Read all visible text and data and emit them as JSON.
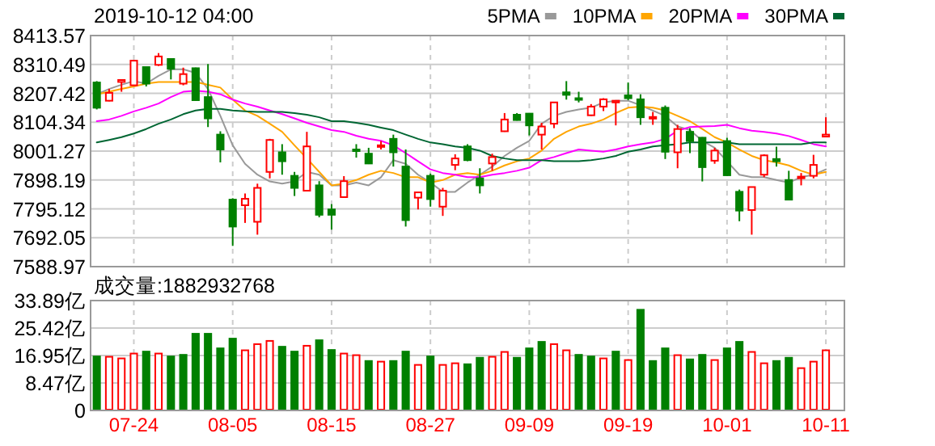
{
  "chart_data": [
    {
      "type": "candlestick",
      "title": "2019-10-12 04:00",
      "categories": [
        null,
        null,
        null,
        null,
        null,
        null,
        null,
        null,
        null,
        null,
        null,
        null,
        null,
        null,
        null,
        null,
        null,
        null,
        null,
        null,
        null,
        null,
        null,
        null,
        null,
        null,
        null,
        null,
        null,
        null,
        null,
        null,
        null,
        null,
        null,
        null,
        null,
        null,
        null,
        null,
        null,
        null,
        null,
        null,
        null,
        null,
        null,
        null,
        null,
        null,
        null,
        null,
        null,
        null,
        null,
        null,
        null,
        null,
        null,
        null
      ],
      "ohlc": [
        [
          8246,
          8251,
          8150,
          8156
        ],
        [
          8181,
          8223,
          8179,
          8209
        ],
        [
          8248,
          8255,
          8213,
          8255
        ],
        [
          8236,
          8324,
          8236,
          8324
        ],
        [
          8301,
          8301,
          8232,
          8242
        ],
        [
          8309,
          8351,
          8305,
          8339
        ],
        [
          8330,
          8332,
          8257,
          8295
        ],
        [
          8242,
          8299,
          8236,
          8276
        ],
        [
          8297,
          8299,
          8181,
          8183
        ],
        [
          8194,
          8312,
          8087,
          8118
        ],
        [
          8060,
          8072,
          7961,
          8007
        ],
        [
          7828,
          7833,
          7663,
          7732
        ],
        [
          7808,
          7850,
          7745,
          7831
        ],
        [
          7749,
          7885,
          7703,
          7870
        ],
        [
          7927,
          8045,
          7904,
          8041
        ],
        [
          7997,
          8026,
          7917,
          7965
        ],
        [
          7913,
          7927,
          7841,
          7870
        ],
        [
          7860,
          8070,
          7858,
          8018
        ],
        [
          7879,
          7894,
          7765,
          7774
        ],
        [
          7793,
          7812,
          7721,
          7774
        ],
        [
          7837,
          7912,
          7835,
          7894
        ],
        [
          8007,
          8026,
          7978,
          8003
        ],
        [
          7992,
          8013,
          7955,
          7957
        ],
        [
          8018,
          8037,
          8007,
          8022
        ],
        [
          8045,
          8060,
          7946,
          7997
        ],
        [
          7946,
          8007,
          7732,
          7755
        ],
        [
          7835,
          7854,
          7793,
          7854
        ],
        [
          7913,
          7921,
          7803,
          7830
        ],
        [
          7803,
          7870,
          7770,
          7860
        ],
        [
          7952,
          7990,
          7933,
          7975
        ],
        [
          8018,
          8026,
          7965,
          7969
        ],
        [
          7904,
          7940,
          7850,
          7879
        ],
        [
          7957,
          7992,
          7931,
          7980
        ],
        [
          8072,
          8137,
          8070,
          8114
        ],
        [
          8131,
          8137,
          8110,
          8112
        ],
        [
          8135,
          8137,
          8057,
          8093
        ],
        [
          8060,
          8102,
          8007,
          8089
        ],
        [
          8099,
          8175,
          8083,
          8175
        ],
        [
          8211,
          8251,
          8185,
          8202
        ],
        [
          8190,
          8213,
          8175,
          8185
        ],
        [
          8129,
          8169,
          8127,
          8160
        ],
        [
          8160,
          8190,
          8144,
          8186
        ],
        [
          8175,
          8183,
          8093,
          8181
        ],
        [
          8200,
          8246,
          8183,
          8190
        ],
        [
          8186,
          8204,
          8095,
          8122
        ],
        [
          8120,
          8141,
          8095,
          8123
        ],
        [
          8156,
          8164,
          7973,
          7999
        ],
        [
          7997,
          8095,
          7940,
          8080
        ],
        [
          8070,
          8083,
          7994,
          8037
        ],
        [
          8049,
          8051,
          7893,
          7944
        ],
        [
          7967,
          8013,
          7956,
          8003
        ],
        [
          8037,
          8049,
          7912,
          7915
        ],
        [
          7856,
          7864,
          7751,
          7789
        ],
        [
          7791,
          7873,
          7703,
          7873
        ],
        [
          7917,
          7990,
          7908,
          7986
        ],
        [
          7973,
          8017,
          7946,
          7965
        ],
        [
          7898,
          7931,
          7828,
          7828
        ],
        [
          7906,
          7923,
          7879,
          7910
        ],
        [
          7913,
          7988,
          7904,
          7952
        ],
        [
          8053,
          8122,
          8053,
          8060
        ]
      ],
      "series": [
        {
          "name": "5PMA",
          "type": "line",
          "color": "#999999",
          "values": [
            8204,
            8223,
            8238,
            8251,
            8242,
            8270,
            8293,
            8293,
            8280,
            8223,
            8127,
            8022,
            7956,
            7917,
            7893,
            7885,
            7893,
            7927,
            7917,
            7879,
            7879,
            7889,
            7879,
            7908,
            7969,
            7956,
            7917,
            7889,
            7856,
            7856,
            7889,
            7917,
            7946,
            7984,
            8013,
            8038,
            8099,
            8127,
            8141,
            8150,
            8156,
            8175,
            8181,
            8181,
            8165,
            8146,
            8127,
            8089,
            8076,
            8038,
            8013,
            7965,
            7917,
            7908,
            7908,
            7898,
            7889,
            7908,
            7917,
            7936
          ]
        },
        {
          "name": "10PMA",
          "type": "line",
          "color": "#ffa500",
          "values": [
            8204,
            8213,
            8223,
            8232,
            8242,
            8248,
            8248,
            8248,
            8248,
            8238,
            8228,
            8185,
            8146,
            8127,
            8099,
            8070,
            8022,
            7975,
            7927,
            7879,
            7885,
            7898,
            7917,
            7931,
            7923,
            7908,
            7908,
            7889,
            7898,
            7917,
            7923,
            7917,
            7931,
            7950,
            7965,
            7975,
            8003,
            8045,
            8070,
            8089,
            8099,
            8114,
            8137,
            8156,
            8160,
            8156,
            8146,
            8127,
            8108,
            8080,
            8051,
            8032,
            8007,
            7984,
            7969,
            7961,
            7950,
            7931,
            7917,
            7927
          ]
        },
        {
          "name": "20PMA",
          "type": "line",
          "color": "#ff00ff",
          "values": [
            8108,
            8114,
            8127,
            8143,
            8156,
            8171,
            8194,
            8213,
            8217,
            8213,
            8204,
            8185,
            8171,
            8160,
            8146,
            8133,
            8118,
            8102,
            8089,
            8076,
            8070,
            8056,
            8045,
            8038,
            8022,
            7994,
            7965,
            7936,
            7923,
            7917,
            7908,
            7908,
            7917,
            7923,
            7931,
            7942,
            7969,
            7980,
            7994,
            8007,
            8003,
            7999,
            8007,
            8018,
            8026,
            8032,
            8045,
            8074,
            8087,
            8089,
            8091,
            8095,
            8083,
            8074,
            8070,
            8064,
            8055,
            8041,
            8026,
            8018
          ]
        },
        {
          "name": "30PMA",
          "type": "line",
          "color": "#006633",
          "values": [
            8032,
            8041,
            8051,
            8064,
            8080,
            8099,
            8114,
            8133,
            8146,
            8152,
            8152,
            8146,
            8143,
            8141,
            8141,
            8141,
            8137,
            8131,
            8122,
            8108,
            8108,
            8102,
            8095,
            8085,
            8076,
            8060,
            8045,
            8032,
            8026,
            8018,
            8013,
            8003,
            7984,
            7975,
            7969,
            7969,
            7969,
            7965,
            7965,
            7965,
            7969,
            7975,
            7984,
            7999,
            8007,
            8018,
            8022,
            8026,
            8032,
            8032,
            8032,
            8032,
            8026,
            8026,
            8026,
            8026,
            8026,
            8026,
            8032,
            8032
          ]
        }
      ],
      "ylim": [
        7588.97,
        8413.57
      ],
      "yticks": [
        8413.57,
        8310.49,
        8207.42,
        8104.34,
        8001.27,
        7898.19,
        7795.12,
        7692.05,
        7588.97
      ],
      "grid": true,
      "legend": "top right",
      "tick_labels": "y"
    },
    {
      "type": "bar",
      "title": "成交量:1882932768",
      "categories": [
        null,
        null,
        null,
        "07-24",
        null,
        null,
        null,
        null,
        null,
        null,
        null,
        "08-05",
        null,
        null,
        null,
        null,
        null,
        null,
        null,
        "08-15",
        null,
        null,
        null,
        null,
        null,
        null,
        null,
        "08-27",
        null,
        null,
        null,
        null,
        null,
        null,
        null,
        "09-09",
        null,
        null,
        null,
        null,
        null,
        null,
        null,
        "09-19",
        null,
        null,
        null,
        null,
        null,
        null,
        null,
        "10-01",
        null,
        null,
        null,
        null,
        null,
        null,
        null,
        "10-11"
      ],
      "values": [
        16.9,
        16.8,
        16.3,
        17.8,
        18.4,
        17.8,
        16.9,
        17.4,
        23.9,
        23.9,
        19.4,
        22.4,
        18.8,
        20.7,
        21.7,
        19.9,
        18.4,
        20.2,
        21.9,
        18.9,
        17.8,
        17.3,
        15.5,
        15.3,
        15.5,
        18.4,
        14.3,
        16.9,
        14.3,
        14.8,
        14.5,
        16.5,
        16.8,
        18.3,
        16.5,
        19.4,
        21.4,
        20.7,
        18.8,
        17.4,
        16.9,
        16.3,
        18.4,
        15.8,
        31.3,
        15.5,
        19.4,
        17.3,
        16.0,
        17.4,
        15.8,
        19.4,
        21.4,
        18.3,
        14.8,
        15.5,
        16.5,
        13.3,
        15.3,
        18.8
      ],
      "colors": [
        "#008000",
        "#ff0000",
        "#ff0000",
        "#ff0000",
        "#008000",
        "#ff0000",
        "#008000",
        "#008000",
        "#008000",
        "#008000",
        "#008000",
        "#008000",
        "#ff0000",
        "#ff0000",
        "#ff0000",
        "#008000",
        "#008000",
        "#ff0000",
        "#008000",
        "#008000",
        "#ff0000",
        "#ff0000",
        "#008000",
        "#ff0000",
        "#008000",
        "#008000",
        "#ff0000",
        "#008000",
        "#ff0000",
        "#ff0000",
        "#008000",
        "#008000",
        "#ff0000",
        "#ff0000",
        "#008000",
        "#008000",
        "#008000",
        "#ff0000",
        "#ff0000",
        "#008000",
        "#008000",
        "#ff0000",
        "#008000",
        "#ff0000",
        "#008000",
        "#008000",
        "#008000",
        "#ff0000",
        "#008000",
        "#008000",
        "#ff0000",
        "#008000",
        "#008000",
        "#ff0000",
        "#ff0000",
        "#008000",
        "#008000",
        "#ff0000",
        "#ff0000",
        "#ff0000"
      ],
      "ylim": [
        0,
        33.89
      ],
      "yticks": [
        0,
        {
          "value": 8.47,
          "label": "8.47亿"
        },
        {
          "value": 16.95,
          "label": "16.95亿"
        },
        {
          "value": 25.42,
          "label": "25.42亿"
        },
        {
          "value": 33.89,
          "label": "33.89亿"
        }
      ],
      "grid": true
    }
  ]
}
